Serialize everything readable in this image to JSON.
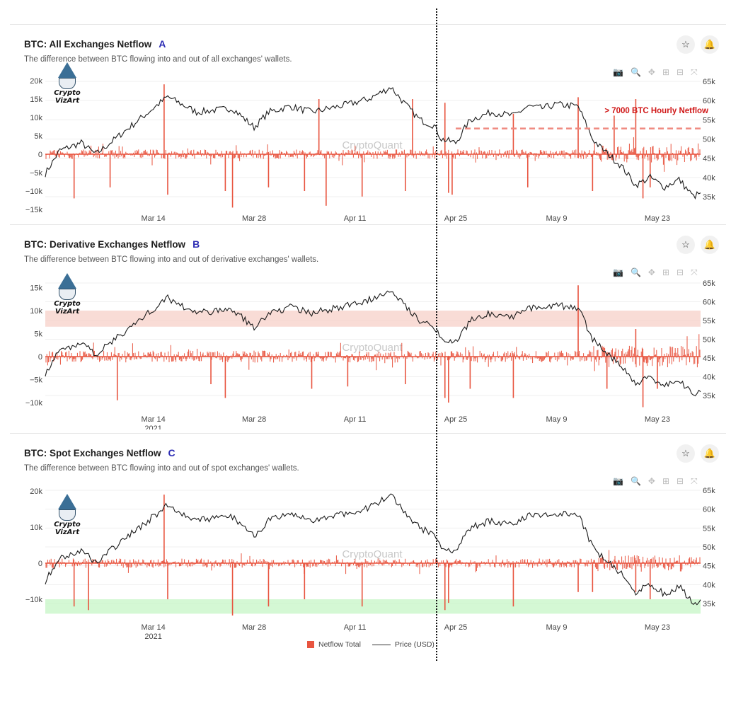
{
  "colors": {
    "netflow": "#e8543f",
    "price": "#1b1b1b",
    "title_label": "#2d2db4",
    "annotation": "#d01818",
    "red_band": "#f7d0c8",
    "green_band": "#c6f5c6"
  },
  "icons": [
    "star-icon",
    "bell-icon",
    "camera-icon",
    "zoom-icon",
    "pan-icon",
    "zoom-in-icon",
    "zoom-out-icon",
    "reset-axes-icon"
  ],
  "logo": {
    "line1": "Crypto",
    "line2": "VizArt"
  },
  "watermark": "CryptoQuant",
  "legend": {
    "netflow": "Netflow Total",
    "price": "Price (USD)"
  },
  "panels": [
    {
      "title": "BTC: All Exchanges Netflow",
      "label": "A",
      "subtitle": "The difference between BTC flowing into and out of all exchanges' wallets.",
      "x_year": "",
      "annotation": "> 7000 BTC Hourly Netflow"
    },
    {
      "title": "BTC: Derivative Exchanges Netflow",
      "label": "B",
      "subtitle": "The difference between BTC flowing into and out of derivative exchanges' wallets.",
      "x_year": "2021",
      "annotation": ""
    },
    {
      "title": "BTC: Spot Exchanges Netflow",
      "label": "C",
      "subtitle": "The difference between BTC flowing into and out of spot exchanges' wallets.",
      "x_year": "2021",
      "annotation": ""
    }
  ],
  "chart_data": [
    {
      "type": "bar",
      "title": "BTC: All Exchanges Netflow",
      "x_ticks": [
        "Mar 14",
        "Mar 28",
        "Apr 11",
        "Apr 25",
        "May 9",
        "May 23"
      ],
      "x_tick_days": [
        13,
        27,
        41,
        55,
        69,
        83
      ],
      "xlim_days": [
        -2,
        89
      ],
      "y_left_ticks": [
        "20k",
        "15k",
        "10k",
        "5k",
        "0",
        "−5k",
        "−10k",
        "−15k"
      ],
      "y_left_values": [
        20000,
        15000,
        10000,
        5000,
        0,
        -5000,
        -10000,
        -15000
      ],
      "ylim_left": [
        -15000,
        20000
      ],
      "y_right_ticks": [
        "65k",
        "60k",
        "55k",
        "50k",
        "45k",
        "40k",
        "35k"
      ],
      "y_right_values": [
        65000,
        60000,
        55000,
        50000,
        45000,
        40000,
        35000
      ],
      "ylim_right": [
        35000,
        65000
      ],
      "series": [
        {
          "name": "Netflow Total",
          "type": "bar",
          "day": [
            2,
            7,
            14.5,
            15,
            23,
            24,
            29,
            34,
            36,
            37,
            42,
            48,
            49,
            53.5,
            54,
            54.5,
            63,
            65,
            72,
            74,
            77,
            80,
            81,
            82
          ],
          "values": [
            -12000,
            -9000,
            19000,
            -11000,
            -10000,
            -14500,
            -9000,
            -10000,
            15000,
            -14000,
            -11500,
            -10000,
            15000,
            14000,
            -10500,
            -11000,
            11000,
            -9000,
            15500,
            -10000,
            10500,
            15000,
            -12000,
            -9000
          ]
        },
        {
          "name": "Price (USD)",
          "type": "line",
          "day": [
            -2,
            0,
            3,
            5,
            9,
            13,
            15,
            19,
            24,
            27,
            29,
            32,
            35,
            40,
            43,
            46,
            48,
            50,
            52,
            53,
            55,
            57,
            60,
            63,
            65,
            67,
            69,
            72,
            74,
            75,
            78,
            80,
            82,
            84,
            86,
            88,
            89
          ],
          "values": [
            41000,
            47000,
            49000,
            46000,
            52000,
            58000,
            61000,
            57000,
            58000,
            53000,
            57000,
            58500,
            57000,
            59000,
            60500,
            63500,
            59000,
            55000,
            53500,
            50000,
            49000,
            55000,
            57000,
            56000,
            58500,
            58000,
            59000,
            58500,
            50000,
            48000,
            43000,
            38000,
            40000,
            37500,
            39500,
            35000,
            36000
          ]
        }
      ],
      "reference_line": {
        "value": 7000,
        "label": "> 7000 BTC Hourly Netflow",
        "from_day": 55
      }
    },
    {
      "type": "bar",
      "title": "BTC: Derivative Exchanges Netflow",
      "x_ticks": [
        "Mar 14",
        "Mar 28",
        "Apr 11",
        "Apr 25",
        "May 9",
        "May 23"
      ],
      "x_tick_days": [
        13,
        27,
        41,
        55,
        69,
        83
      ],
      "x_year": "2021",
      "xlim_days": [
        -2,
        89
      ],
      "y_left_ticks": [
        "15k",
        "10k",
        "5k",
        "0",
        "−5k",
        "−10k"
      ],
      "y_left_values": [
        15000,
        10000,
        5000,
        0,
        -5000,
        -10000
      ],
      "ylim_left": [
        -10000,
        15000
      ],
      "y_right_ticks": [
        "65k",
        "60k",
        "55k",
        "50k",
        "45k",
        "40k",
        "35k"
      ],
      "y_right_values": [
        65000,
        60000,
        55000,
        50000,
        45000,
        40000,
        35000
      ],
      "ylim_right": [
        35000,
        65000
      ],
      "series": [
        {
          "name": "Netflow Total",
          "type": "bar",
          "day": [
            8,
            21,
            23,
            35,
            40,
            48,
            53.5,
            54,
            57,
            63,
            72,
            76,
            80,
            81,
            83
          ],
          "values": [
            -9500,
            -6000,
            -9000,
            -7000,
            -6500,
            -6000,
            -9000,
            -10000,
            -7000,
            -9000,
            15500,
            -7000,
            6000,
            -11000,
            -7000
          ]
        },
        {
          "name": "Price (USD)",
          "type": "line",
          "day": [
            -2,
            0,
            3,
            5,
            9,
            13,
            15,
            19,
            24,
            27,
            29,
            32,
            35,
            40,
            43,
            46,
            48,
            50,
            52,
            53,
            55,
            57,
            60,
            63,
            65,
            67,
            69,
            72,
            74,
            75,
            78,
            80,
            82,
            84,
            86,
            88,
            89
          ],
          "values": [
            41000,
            47000,
            49000,
            46000,
            52000,
            58000,
            61000,
            57000,
            58000,
            53000,
            57000,
            58500,
            57000,
            59000,
            60500,
            63500,
            59000,
            55000,
            53500,
            50000,
            49000,
            55000,
            57000,
            56000,
            58500,
            58000,
            59000,
            58500,
            50000,
            48000,
            43000,
            38000,
            40000,
            37500,
            39500,
            35000,
            36000
          ]
        }
      ],
      "highlight_band": {
        "from": 6500,
        "to": 10000,
        "color": "red"
      }
    },
    {
      "type": "bar",
      "title": "BTC: Spot Exchanges Netflow",
      "x_ticks": [
        "Mar 14",
        "Mar 28",
        "Apr 11",
        "Apr 25",
        "May 9",
        "May 23"
      ],
      "x_tick_days": [
        13,
        27,
        41,
        55,
        69,
        83
      ],
      "x_year": "2021",
      "xlim_days": [
        -2,
        89
      ],
      "y_left_ticks": [
        "20k",
        "10k",
        "0",
        "−10k"
      ],
      "y_left_values": [
        20000,
        10000,
        0,
        -10000
      ],
      "ylim_left": [
        -14000,
        20000
      ],
      "y_right_ticks": [
        "65k",
        "60k",
        "55k",
        "50k",
        "45k",
        "40k",
        "35k"
      ],
      "y_right_values": [
        65000,
        60000,
        55000,
        50000,
        45000,
        40000,
        35000
      ],
      "ylim_right": [
        35000,
        65000
      ],
      "series": [
        {
          "name": "Netflow Total",
          "type": "bar",
          "day": [
            2,
            4,
            14.5,
            15,
            24,
            29,
            34,
            42,
            53.5,
            54,
            63,
            72,
            74,
            80,
            82
          ],
          "values": [
            -12000,
            -13000,
            19000,
            -10000,
            -14500,
            -12000,
            -10000,
            -12000,
            -13000,
            -11000,
            -12000,
            -8000,
            -8000,
            -8000,
            -10000
          ]
        },
        {
          "name": "Price (USD)",
          "type": "line",
          "day": [
            -2,
            0,
            3,
            5,
            9,
            13,
            15,
            19,
            24,
            27,
            29,
            32,
            35,
            40,
            43,
            46,
            48,
            50,
            52,
            53,
            55,
            57,
            60,
            63,
            65,
            67,
            69,
            72,
            74,
            75,
            78,
            80,
            82,
            84,
            86,
            88,
            89
          ],
          "values": [
            41000,
            47000,
            49000,
            46000,
            52000,
            58000,
            61000,
            57000,
            58000,
            53000,
            57000,
            58500,
            57000,
            59000,
            60500,
            63500,
            59000,
            55000,
            53500,
            50000,
            49000,
            55000,
            57000,
            56000,
            58500,
            58000,
            59000,
            58500,
            50000,
            48000,
            43000,
            38000,
            40000,
            37500,
            39500,
            35000,
            36000
          ]
        }
      ],
      "highlight_band": {
        "from": -14000,
        "to": -10000,
        "color": "green"
      }
    }
  ]
}
